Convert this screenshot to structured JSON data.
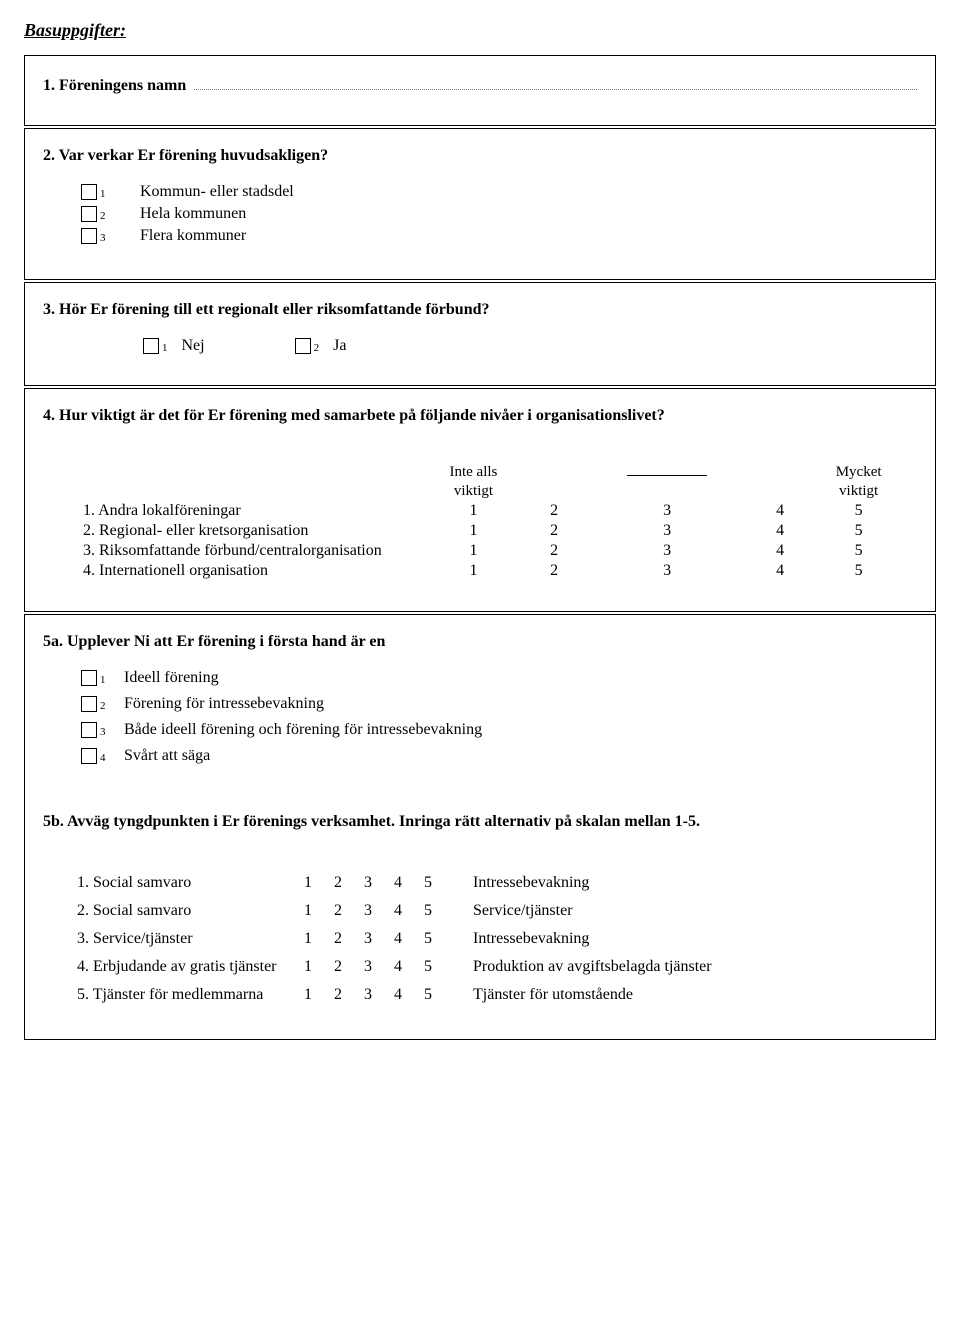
{
  "page": {
    "title": "Basuppgifter:"
  },
  "q1": {
    "label": "1. Föreningens namn"
  },
  "q2": {
    "title": "2. Var verkar Er förening huvudsakligen?",
    "options": [
      {
        "num": "1",
        "label": "Kommun- eller stadsdel"
      },
      {
        "num": "2",
        "label": "Hela kommunen"
      },
      {
        "num": "3",
        "label": "Flera kommuner"
      }
    ]
  },
  "q3": {
    "title": "3. Hör Er förening till ett regionalt eller riksomfattande förbund?",
    "options": [
      {
        "num": "1",
        "label": "Nej"
      },
      {
        "num": "2",
        "label": "Ja"
      }
    ]
  },
  "q4": {
    "title": "4. Hur viktigt är det för Er förening med samarbete på följande nivåer i organisationslivet?",
    "header_left_top": "Inte alls",
    "header_left_bottom": "viktigt",
    "header_right_top": "Mycket",
    "header_right_bottom": "viktigt",
    "scale": [
      "1",
      "2",
      "3",
      "4",
      "5"
    ],
    "rows": [
      {
        "label": "1. Andra lokalföreningar"
      },
      {
        "label": "2. Regional- eller kretsorganisation"
      },
      {
        "label": "3. Riksomfattande förbund/centralorganisation"
      },
      {
        "label": "4. Internationell organisation"
      }
    ]
  },
  "q5a": {
    "title": "5a. Upplever Ni att Er förening i första hand är en",
    "options": [
      {
        "num": "1",
        "label": "Ideell förening"
      },
      {
        "num": "2",
        "label": "Förening för intressebevakning"
      },
      {
        "num": "3",
        "label": "Både ideell förening och förening för intressebevakning"
      },
      {
        "num": "4",
        "label": "Svårt att säga"
      }
    ]
  },
  "q5b": {
    "title": "5b. Avväg tyngdpunkten i Er förenings verksamhet. Inringa rätt alternativ på skalan mellan 1-5.",
    "scale": [
      "1",
      "2",
      "3",
      "4",
      "5"
    ],
    "rows": [
      {
        "left": "1. Social samvaro",
        "right": "Intressebevakning"
      },
      {
        "left": "2. Social samvaro",
        "right": "Service/tjänster"
      },
      {
        "left": "3. Service/tjänster",
        "right": "Intressebevakning"
      },
      {
        "left": "4. Erbjudande av gratis tjänster",
        "right": "Produktion av avgiftsbelagda tjänster"
      },
      {
        "left": "5. Tjänster för medlemmarna",
        "right": "Tjänster för utomstående"
      }
    ]
  }
}
